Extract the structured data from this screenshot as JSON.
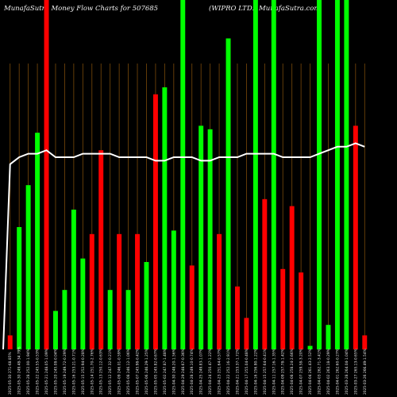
{
  "chart_data": {
    "type": "bar",
    "title": "MunafaSutra  Money Flow  Charts for 507685",
    "subtitle": "(WIPRO LTD.) MunafaSutra.com",
    "xlabel": "",
    "ylabel": "",
    "ylim": [
      0,
      100
    ],
    "grid": true,
    "legend": "none",
    "colors": {
      "up": "#00ff00",
      "down": "#ff0000",
      "line": "#ffffff",
      "grid": "#7a4a0a",
      "background": "#000000"
    },
    "categories": [
      "2025-05-30 271-68.85%",
      "2025-05-30 249.48-34.79%",
      "2025-05-28 252.00-1.94%",
      "2025-05-22 245.55-0.53%",
      "2025-05-21 248.05-1.09%",
      "2025-05-20 245.08-0.04%",
      "2025-05-19 249.72-0.29%",
      "2025-05-16 253.21-0.71%",
      "2025-05-15 252.94-0.28%",
      "2025-05-14 251.70-2.76%",
      "2025-05-13 250.12-0.63%",
      "2025-05-12 247.32-0.21%",
      "2025-05-09 246.01-0.59%",
      "2025-05-08 246.12-1.06%",
      "2025-05-07 245.98-0.42%",
      "2025-05-06 246.29-1.25%",
      "2025-05-05 245.82-0.67%",
      "2025-05-02 247.87-1.48%",
      "2025-04-30 248.20-1.56%",
      "2025-04-29 248.67-0.36%",
      "2025-04-28 249.10-0.74%",
      "2025-04-25 249.83-1.07%",
      "2025-04-24 250.47-1.22%",
      "2025-04-23 251.64-0.57%",
      "2025-04-22 252.16-2.91%",
      "2025-04-21 253.37-1.72%",
      "2025-04-17 255.04-0.48%",
      "2025-04-16 256.80-1.22%",
      "2025-04-15 257.64-0.41%",
      "2025-04-11 257.16-1.35%",
      "2025-04-09 257.78-1.42%",
      "2025-04-08 258.24-2.66%",
      "2025-04-07 259.58-3.20%",
      "2025-04-04 261.43-2.52%",
      "2025-04-03 262.71-3.41%",
      "2025-04-02 263.18-0.29%",
      "2025-04-01 262.60-0.27%",
      "2025-03-28 264.04-1.04%",
      "2025-03-27 265.13-0.65%",
      "2025-03-26 266.49-1.54%"
    ],
    "series": [
      {
        "values": [
          4,
          35,
          47,
          62,
          100,
          11,
          17,
          40,
          26,
          33,
          57,
          17,
          33,
          17,
          33,
          25,
          73,
          75,
          34,
          100,
          24,
          64,
          63,
          33,
          89,
          18,
          9,
          100,
          43,
          100,
          23,
          41,
          22,
          1,
          100,
          7,
          100,
          100,
          64,
          4
        ],
        "directions": [
          "down",
          "up",
          "up",
          "up",
          "down",
          "up",
          "up",
          "up",
          "up",
          "down",
          "down",
          "up",
          "down",
          "up",
          "down",
          "up",
          "down",
          "up",
          "up",
          "up",
          "down",
          "up",
          "up",
          "down",
          "up",
          "down",
          "down",
          "up",
          "down",
          "up",
          "down",
          "down",
          "down",
          "up",
          "up",
          "up",
          "up",
          "up",
          "down",
          "down"
        ]
      },
      {
        "values": [
          53,
          55,
          56,
          56,
          57,
          55,
          55,
          55,
          56,
          56,
          56,
          56,
          55,
          55,
          55,
          55,
          54,
          54,
          55,
          55,
          55,
          54,
          54,
          55,
          55,
          55,
          56,
          56,
          56,
          56,
          55,
          55,
          55,
          55,
          56,
          57,
          58,
          58,
          59,
          58
        ]
      }
    ]
  }
}
